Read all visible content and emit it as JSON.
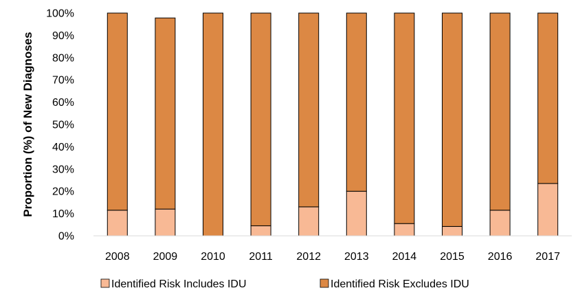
{
  "chart_data": {
    "type": "bar",
    "stacked": true,
    "percent_stacked": true,
    "categories": [
      "2008",
      "2009",
      "2010",
      "2011",
      "2012",
      "2013",
      "2014",
      "2015",
      "2016",
      "2017"
    ],
    "series": [
      {
        "name": "Identified Risk Includes IDU",
        "color": "#F8B995",
        "values": [
          11.5,
          12,
          0,
          4.5,
          13,
          20,
          5.5,
          4.2,
          11.5,
          23.5
        ]
      },
      {
        "name": "Identified Risk Excludes IDU",
        "color": "#DC8844",
        "values": [
          88.5,
          85.8,
          100,
          95.5,
          87,
          80,
          94.5,
          95.8,
          88.5,
          76.5
        ]
      }
    ],
    "ylabel": "Proportion  (%) of New Diagnoses",
    "xlabel": "",
    "ylim": [
      0,
      100
    ],
    "yticks": [
      "0%",
      "10%",
      "20%",
      "30%",
      "40%",
      "50%",
      "60%",
      "70%",
      "80%",
      "90%",
      "100%"
    ],
    "grid": false,
    "legend_position": "bottom"
  }
}
